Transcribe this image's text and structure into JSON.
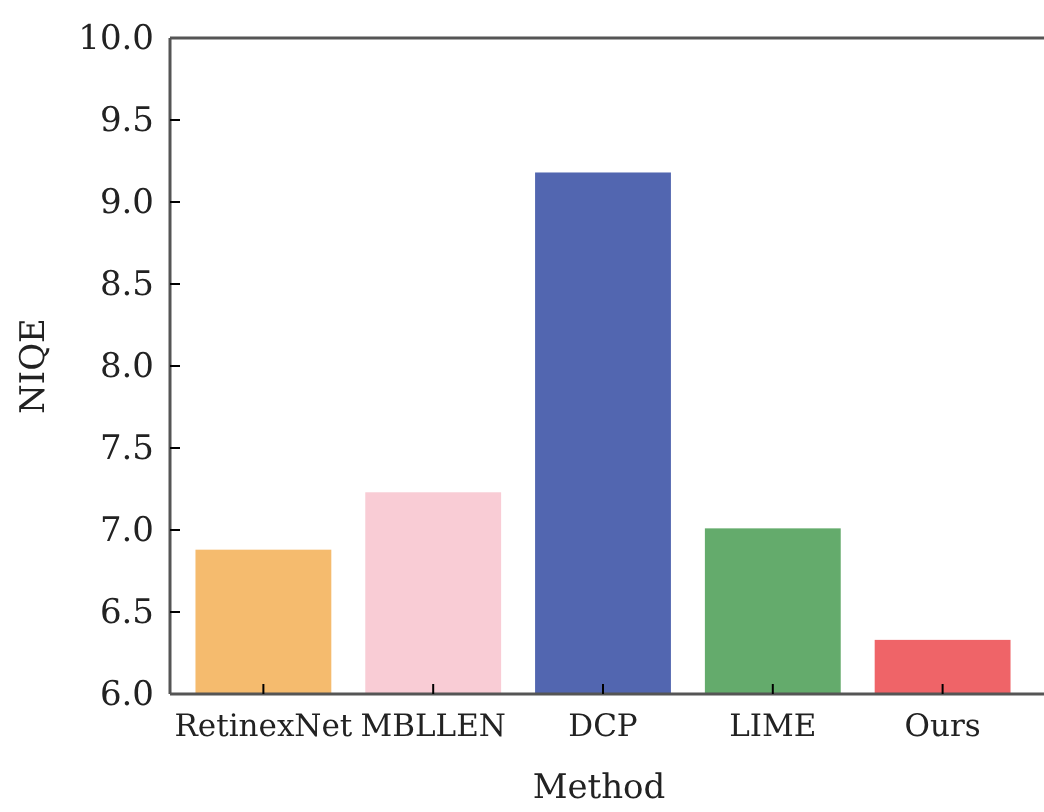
{
  "chart_data": {
    "type": "bar",
    "xlabel": "Method",
    "ylabel": "NIQE",
    "categories": [
      "RetinexNet",
      "MBLLEN",
      "DCP",
      "LIME",
      "Ours"
    ],
    "values": [
      6.88,
      7.23,
      9.18,
      7.01,
      6.33
    ],
    "colors": [
      "#f5bb6e",
      "#f9ccd5",
      "#5266b0",
      "#64ab6c",
      "#ef6468"
    ],
    "ylim": [
      6.0,
      10.0
    ],
    "yticks": [
      {
        "value": 6,
        "label": "6.0"
      },
      {
        "value": 6.5,
        "label": "6.5"
      },
      {
        "value": 7,
        "label": "7.0"
      },
      {
        "value": 7.5,
        "label": "7.5"
      },
      {
        "value": 8,
        "label": "8.0"
      },
      {
        "value": 8.5,
        "label": "8.5"
      },
      {
        "value": 9,
        "label": "9.0"
      },
      {
        "value": 9.5,
        "label": "9.5"
      },
      {
        "value": 10,
        "label": "10.0"
      }
    ],
    "grid": false
  }
}
